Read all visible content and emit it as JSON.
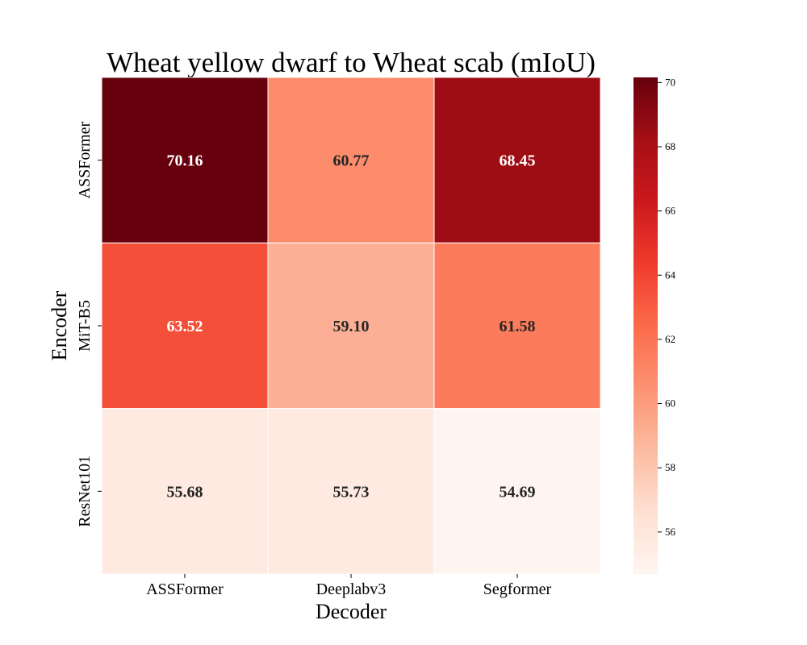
{
  "chart_data": {
    "type": "heatmap",
    "title": "Wheat yellow dwarf to Wheat scab (mIoU)",
    "xlabel": "Decoder",
    "ylabel": "Encoder",
    "x_categories": [
      "ASSFormer",
      "Deeplabv3",
      "Segformer"
    ],
    "y_categories": [
      "ASSFormer",
      "MiT-B5",
      "ResNet101"
    ],
    "values": [
      [
        70.16,
        60.77,
        68.45
      ],
      [
        63.52,
        59.1,
        61.58
      ],
      [
        55.68,
        55.73,
        54.69
      ]
    ],
    "value_labels": [
      [
        "70.16",
        "60.77",
        "68.45"
      ],
      [
        "63.52",
        "59.10",
        "61.58"
      ],
      [
        "55.68",
        "55.73",
        "54.69"
      ]
    ],
    "colorbar": {
      "range": [
        54.69,
        70.16
      ],
      "ticks": [
        56,
        58,
        60,
        62,
        64,
        66,
        68,
        70
      ],
      "colormap": "Reds"
    }
  }
}
